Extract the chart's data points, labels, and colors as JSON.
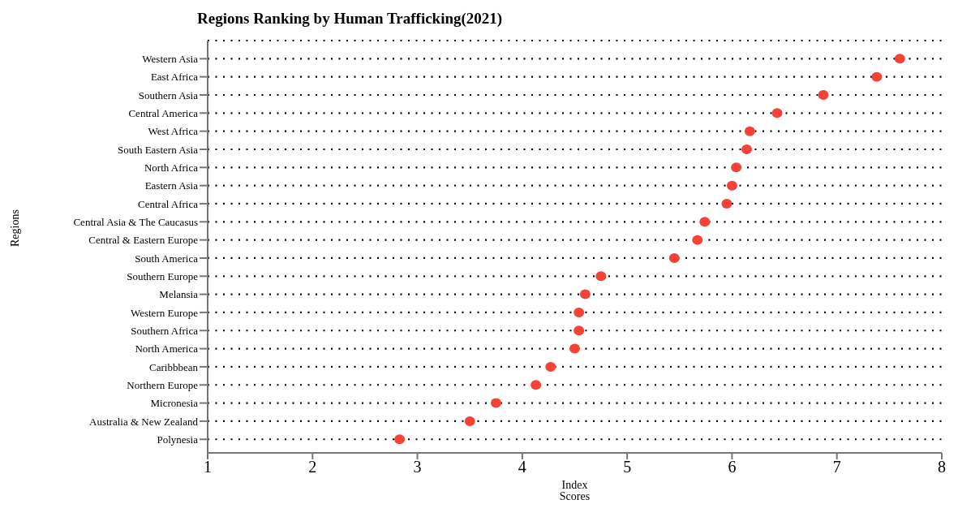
{
  "chart_data": {
    "type": "scatter",
    "title": "Regions Ranking by Human Trafficking(2021)",
    "xlabel": "Index Scores",
    "ylabel": "Regions",
    "categories": [
      "Western Asia",
      "East Africa",
      "Southern Asia",
      "Central America",
      "West Africa",
      "South Eastern Asia",
      "North Africa",
      "Eastern Asia",
      "Central Africa",
      "Central Asia & The Caucasus",
      "Central & Eastern Europe",
      "South America",
      "Southern Europe",
      "Melansia",
      "Western Europe",
      "Southern Africa",
      "North America",
      "Caribbbean",
      "Northern Europe",
      "Micronesia",
      "Australia & New Zealand",
      "Polynesia"
    ],
    "orientation": "horizontal",
    "values": [
      7.6,
      7.38,
      6.87,
      6.43,
      6.17,
      6.14,
      6.04,
      6.0,
      5.95,
      5.74,
      5.67,
      5.45,
      4.75,
      4.6,
      4.54,
      4.54,
      4.5,
      4.27,
      4.13,
      3.75,
      3.5,
      2.83
    ],
    "color": "#f44336",
    "marker": "circle",
    "grid": "y",
    "xlim": [
      1,
      8
    ],
    "xticks": [
      1,
      2,
      3,
      4,
      5,
      6,
      7,
      8
    ]
  }
}
